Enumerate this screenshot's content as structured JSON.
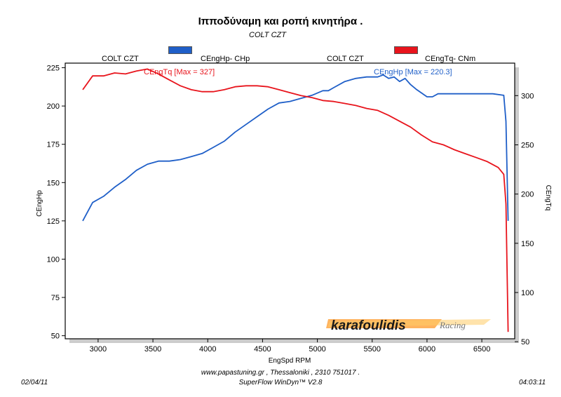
{
  "title": "Ιπποδύναμη και ροπή κινητήρα .",
  "subtitle": "COLT CZT",
  "legend": [
    {
      "run": "COLT CZT",
      "label": "CEngHp-  CHp",
      "color": "#1f5fc8"
    },
    {
      "run": "COLT CZT",
      "label": "CEngTq-  CNm",
      "color": "#e8141c"
    }
  ],
  "watermark": {
    "brand": "karafoulidis",
    "suffix": "Racing"
  },
  "footer": {
    "website": "www.papastuning.gr  ,   Thessaloniki   ,   2310 751017 .",
    "software": "SuperFlow WinDyn™ V2.8",
    "date": "02/04/11",
    "time": "04:03:11"
  },
  "chart_data": {
    "type": "line",
    "xlabel": "EngSpd  RPM",
    "ylabel": "CEngHp",
    "y2label": "CEngTq",
    "xlim": [
      2700,
      6800
    ],
    "ylim": [
      48,
      228
    ],
    "y2lim": [
      53,
      333
    ],
    "x_ticks": [
      3000,
      3500,
      4000,
      4500,
      5000,
      5500,
      6000,
      6500
    ],
    "y_ticks": [
      50,
      75,
      100,
      125,
      150,
      175,
      200,
      225
    ],
    "y2_ticks": [
      50,
      100,
      150,
      200,
      250,
      300
    ],
    "series": [
      {
        "name": "CEngHp",
        "axis": "left",
        "color": "#1f5fc8",
        "annotation": "CEngHp [Max = 220.3]",
        "x": [
          2860,
          2950,
          3050,
          3150,
          3250,
          3350,
          3450,
          3550,
          3650,
          3750,
          3850,
          3950,
          4050,
          4150,
          4250,
          4350,
          4450,
          4550,
          4650,
          4750,
          4850,
          4950,
          5050,
          5100,
          5150,
          5250,
          5350,
          5450,
          5550,
          5600,
          5650,
          5700,
          5750,
          5800,
          5850,
          5900,
          6000,
          6050,
          6100,
          6200,
          6300,
          6400,
          6500,
          6600,
          6700,
          6720,
          6740
        ],
        "y": [
          125,
          137,
          141,
          147,
          152,
          158,
          162,
          164,
          164,
          165,
          167,
          169,
          173,
          177,
          183,
          188,
          193,
          198,
          202,
          203,
          205,
          207,
          210,
          210,
          212,
          216,
          218,
          219,
          219,
          220.3,
          218,
          219,
          216,
          218,
          214,
          211,
          206,
          206,
          208,
          208,
          208,
          208,
          208,
          208,
          207,
          190,
          125
        ]
      },
      {
        "name": "CEngTq",
        "axis": "right",
        "color": "#e8141c",
        "annotation": "CEngTq [Max = 327]",
        "x": [
          2860,
          2950,
          3050,
          3150,
          3250,
          3350,
          3450,
          3550,
          3650,
          3750,
          3850,
          3950,
          4050,
          4150,
          4250,
          4350,
          4450,
          4550,
          4650,
          4750,
          4850,
          4950,
          5050,
          5150,
          5250,
          5350,
          5450,
          5550,
          5650,
          5750,
          5850,
          5950,
          6050,
          6150,
          6250,
          6350,
          6450,
          6550,
          6650,
          6700,
          6720,
          6740
        ],
        "y": [
          306,
          320,
          320,
          323,
          322,
          325,
          327,
          322,
          316,
          310,
          306,
          304,
          304,
          306,
          309,
          310,
          310,
          309,
          306,
          303,
          300,
          298,
          295,
          294,
          292,
          290,
          287,
          285,
          280,
          274,
          268,
          260,
          253,
          250,
          245,
          241,
          237,
          233,
          227,
          220,
          190,
          60
        ]
      }
    ]
  }
}
